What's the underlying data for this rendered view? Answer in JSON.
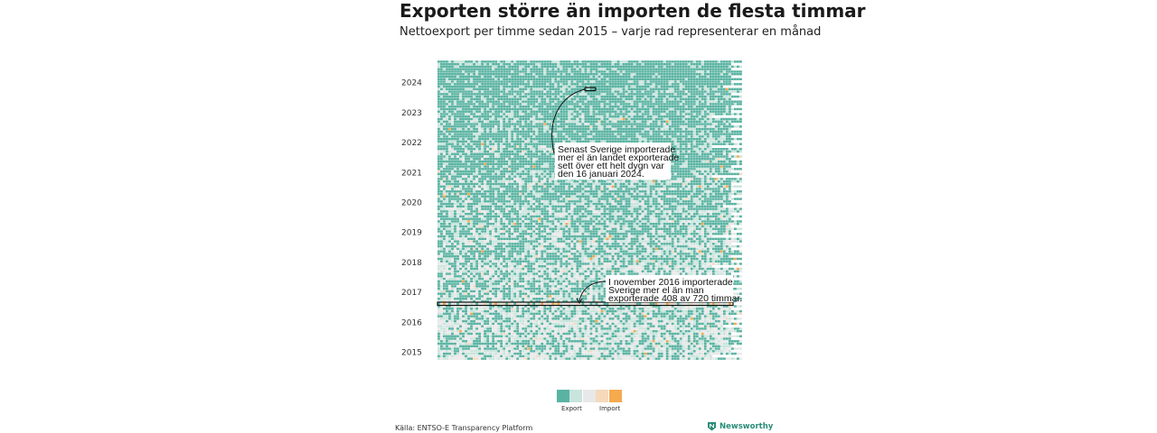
{
  "title": "Exporten större än importen de flesta timmar",
  "subtitle": "Nettoexport per timme sedan 2015 – varje rad representerar en månad",
  "source": "Källa: ENTSO-E Transparency Platform",
  "brand": "Newsworthy",
  "colors": {
    "export_strong": "#5ab3a2",
    "export_light": "#c8e4dc",
    "neutral": "#e8e8e8",
    "import_light": "#f6d9bb",
    "import_strong": "#f5aa4e"
  },
  "legend": {
    "swatches": [
      "#5ab3a2",
      "#c8e4dc",
      "#e8e8e8",
      "#f6d9bb",
      "#f5aa4e"
    ],
    "export_label": "Export",
    "import_label": "Import"
  },
  "chart_data": {
    "type": "heatmap",
    "title": "Exporten större än importen de flesta timmar",
    "subtitle": "Nettoexport per timme sedan 2015 – varje rad representerar en månad",
    "x_description": "timme i månaden",
    "y_description": "månad",
    "y_tick_labels": [
      "2024",
      "2023",
      "2022",
      "2021",
      "2020",
      "2019",
      "2018",
      "2017",
      "2016",
      "2015"
    ],
    "y_range": [
      "2015-01",
      "2024-12"
    ],
    "highlight_month": "2016-11",
    "highlight_hours_import": 408,
    "highlight_hours_total": 720,
    "highlight_date": "2024-01-16",
    "annotations": [
      {
        "text_lines": [
          "Senast Sverige importerade",
          "mer el än landet exporterade",
          "sett över ett helt dygn var",
          "den 16 januari 2024."
        ],
        "month": "2024-01"
      },
      {
        "text_lines": [
          "I november 2016 importerade",
          "Sverige mer el än man",
          "exporterade 408 av 720 timmar."
        ],
        "month": "2016-11"
      }
    ]
  }
}
